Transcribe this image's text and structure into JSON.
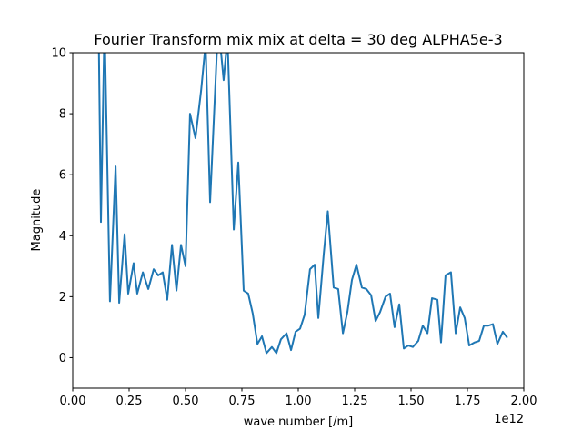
{
  "chart_data": {
    "type": "line",
    "title": "Fourier Transform mix mix at delta = 30 deg ALPHA5e-3",
    "x_label": "wave number [/m]",
    "y_label": "Magnitude",
    "x_offset_label": "1e12",
    "color": "#1f77b4",
    "xlim": [
      0,
      2
    ],
    "ylim": [
      -1,
      10
    ],
    "xticks": [
      {
        "value": 0,
        "label": "0.00"
      },
      {
        "value": 0.25,
        "label": "0.25"
      },
      {
        "value": 0.5,
        "label": "0.50"
      },
      {
        "value": 0.75,
        "label": "0.75"
      },
      {
        "value": 1,
        "label": "1.00"
      },
      {
        "value": 1.25,
        "label": "1.25"
      },
      {
        "value": 1.5,
        "label": "1.50"
      },
      {
        "value": 1.75,
        "label": "1.75"
      },
      {
        "value": 2,
        "label": "2.00"
      }
    ],
    "yticks": [
      0,
      2,
      4,
      6,
      8,
      10
    ],
    "x": [
      0.113,
      0.125,
      0.141,
      0.165,
      0.19,
      0.206,
      0.23,
      0.246,
      0.27,
      0.286,
      0.311,
      0.335,
      0.359,
      0.379,
      0.399,
      0.419,
      0.44,
      0.46,
      0.48,
      0.5,
      0.52,
      0.544,
      0.569,
      0.589,
      0.609,
      0.645,
      0.669,
      0.686,
      0.714,
      0.734,
      0.758,
      0.778,
      0.798,
      0.819,
      0.839,
      0.859,
      0.883,
      0.903,
      0.923,
      0.948,
      0.968,
      0.988,
      1.008,
      1.028,
      1.052,
      1.073,
      1.089,
      1.113,
      1.131,
      1.157,
      1.177,
      1.198,
      1.218,
      1.238,
      1.258,
      1.282,
      1.302,
      1.323,
      1.343,
      1.363,
      1.387,
      1.407,
      1.427,
      1.448,
      1.468,
      1.488,
      1.508,
      1.532,
      1.552,
      1.573,
      1.593,
      1.617,
      1.633,
      1.653,
      1.677,
      1.698,
      1.718,
      1.738,
      1.758,
      1.782,
      1.802,
      1.823,
      1.843,
      1.863,
      1.883,
      1.907,
      1.927
    ],
    "values": [
      12,
      4.45,
      11,
      1.85,
      6.27,
      1.8,
      4.05,
      2.1,
      3.1,
      2.1,
      2.8,
      2.25,
      2.9,
      2.7,
      2.8,
      1.9,
      3.7,
      2.2,
      3.7,
      3.0,
      8.0,
      7.2,
      8.75,
      10.3,
      5.1,
      11,
      9.1,
      10.5,
      4.2,
      6.4,
      2.2,
      2.1,
      1.45,
      0.45,
      0.7,
      0.15,
      0.35,
      0.15,
      0.6,
      0.8,
      0.25,
      0.85,
      0.95,
      1.4,
      2.9,
      3.05,
      1.3,
      3.4,
      4.8,
      2.3,
      2.25,
      0.8,
      1.5,
      2.55,
      3.05,
      2.3,
      2.25,
      2.05,
      1.2,
      1.5,
      2.0,
      2.1,
      1.0,
      1.75,
      0.3,
      0.4,
      0.35,
      0.55,
      1.05,
      0.8,
      1.95,
      1.9,
      0.5,
      2.7,
      2.8,
      0.8,
      1.65,
      1.3,
      0.4,
      0.5,
      0.55,
      1.05,
      1.05,
      1.1,
      0.45,
      0.85,
      0.65
    ]
  }
}
